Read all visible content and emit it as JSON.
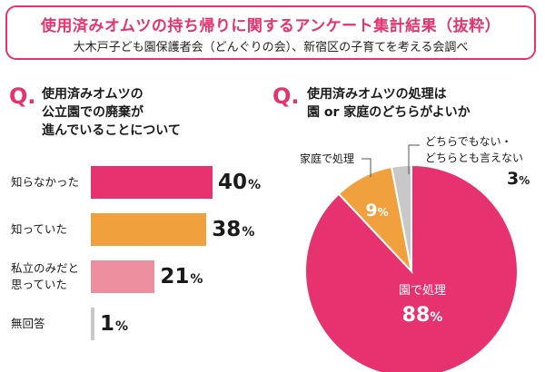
{
  "header": {
    "title": "使用済みオムツの持ち帰りに関するアンケート集計結果（抜粋）",
    "subtitle": "大木戸子ども園保護者会（どんぐりの会）、新宿区の子育てを考える会調べ"
  },
  "colors": {
    "accent": "#e6336f",
    "pink": "#e6336f",
    "orange": "#f0a03c",
    "light_pink": "#ee8fa0",
    "gray": "#c8c8c8"
  },
  "chart_data": [
    {
      "type": "bar",
      "orientation": "horizontal",
      "question_mark": "Q.",
      "question": [
        "使用済みオムツの",
        "公立園での廃棄が",
        "進んでいることについて"
      ],
      "categories": [
        [
          "知らなかった"
        ],
        [
          "知っていた"
        ],
        [
          "私立のみだと",
          "思っていた"
        ],
        [
          "無回答"
        ]
      ],
      "values": [
        40,
        38,
        21,
        1
      ],
      "unit": "%",
      "colors": [
        "#e6336f",
        "#f0a03c",
        "#ee8fa0",
        "#c8c8c8"
      ]
    },
    {
      "type": "pie",
      "question_mark": "Q.",
      "question": [
        "使用済みオムツの処理は",
        "園 or 家庭のどちらがよいか"
      ],
      "slices": [
        {
          "label": [
            "園で処理"
          ],
          "value": 88,
          "color": "#e6336f"
        },
        {
          "label": [
            "家庭で処理"
          ],
          "value": 9,
          "color": "#f0a03c"
        },
        {
          "label": [
            "どちらでもない・",
            "どちらとも言えない"
          ],
          "value": 3,
          "color": "#c8c8c8"
        }
      ],
      "unit": "%"
    }
  ]
}
